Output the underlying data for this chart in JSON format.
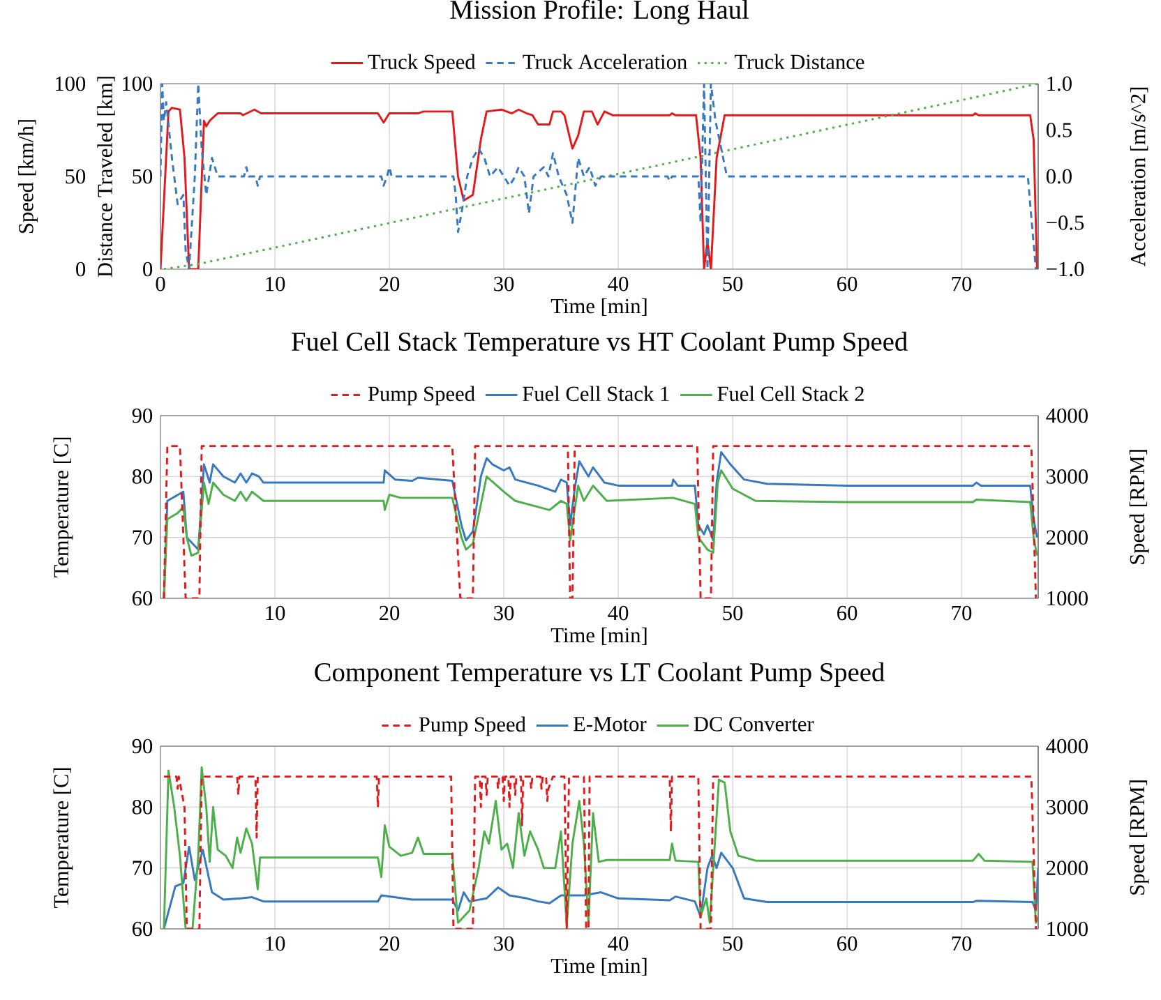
{
  "chart_data": [
    {
      "type": "line",
      "title": "Mission Profile: Long Haul",
      "xlabel": "Time [min]",
      "ylabel": "Speed [km/h]",
      "y2label": "Acceleration [m/s^2]",
      "y3label": "Distance Traveled [km]",
      "xlim": [
        0,
        76.7
      ],
      "xticks": [
        0,
        10,
        20,
        30,
        40,
        50,
        60,
        70
      ],
      "ylim": [
        0,
        100
      ],
      "yticks": [
        0,
        50,
        100
      ],
      "y2lim": [
        -1,
        1
      ],
      "y2ticks": [
        {
          "value": -1,
          "label": "−1.0"
        },
        {
          "value": -0.5,
          "label": "−0.5"
        },
        {
          "value": 0,
          "label": "0.0"
        },
        {
          "value": 0.5,
          "label": "0.5"
        },
        {
          "value": 1,
          "label": "1.0"
        }
      ],
      "y3lim": [
        0,
        100
      ],
      "y3ticks": [
        0,
        50,
        100
      ],
      "grid": "x",
      "legend": "top",
      "series": [
        {
          "name": "Truck Speed",
          "color": "#e31a1c",
          "line_style": "solid",
          "x": [
            0,
            0.7,
            1,
            1.7,
            2.1,
            2.5,
            3.3,
            3.8,
            4.0,
            4.3,
            5,
            7,
            7.2,
            8.2,
            8.8,
            19,
            19.5,
            20,
            22.5,
            23,
            25.5,
            26,
            26.5,
            27.3,
            28,
            28.5,
            29.8,
            30.7,
            31.3,
            32,
            32.5,
            33,
            34,
            34.3,
            35,
            35.3,
            36,
            36.5,
            37,
            37.7,
            38.2,
            38.8,
            39.5,
            44.5,
            44.7,
            45,
            46.8,
            47.2,
            47.5,
            47.8,
            48.1,
            48.6,
            49.3,
            71,
            71.2,
            71.5,
            76,
            76.3,
            76.6
          ],
          "values": [
            0,
            85,
            87,
            86,
            60,
            0,
            0,
            80,
            77,
            80,
            84,
            84,
            83,
            86,
            84,
            84,
            79,
            84,
            84,
            85,
            85,
            50,
            37,
            40,
            70,
            85,
            86,
            84,
            86,
            84,
            83,
            78,
            78,
            85,
            85,
            83,
            65,
            72,
            85,
            85,
            78,
            85,
            83,
            83,
            84,
            83,
            83,
            60,
            0,
            15,
            0,
            60,
            83,
            83,
            84,
            83,
            83,
            70,
            0
          ]
        },
        {
          "name": "Truck Acceleration",
          "color": "#3778bf",
          "line_style": "dashed",
          "axis": "y2",
          "x": [
            0,
            0.15,
            0.3,
            0.5,
            1,
            1.5,
            2,
            2.2,
            2.5,
            3.0,
            3.3,
            3.6,
            4.0,
            4.5,
            5,
            7.3,
            7.5,
            7.7,
            8.3,
            8.5,
            8.7,
            19.3,
            19.5,
            19.8,
            20,
            20.2,
            25.6,
            25.8,
            26,
            26.3,
            26.8,
            27.3,
            27.8,
            28.3,
            28.8,
            29.5,
            30,
            30.5,
            31,
            31.3,
            31.8,
            32.2,
            32.6,
            33.5,
            33.9,
            34.3,
            34.8,
            35.5,
            36,
            36.5,
            37,
            37.5,
            38,
            38.5,
            44.3,
            44.5,
            44.7,
            47,
            47.2,
            47.5,
            47.8,
            48.1,
            48.5,
            49,
            49.5,
            75.8,
            76,
            76.5
          ],
          "values": [
            0,
            1.0,
            0.6,
            0.8,
            0.2,
            -0.3,
            -0.2,
            -0.8,
            -1.0,
            0,
            1.0,
            0.3,
            -0.2,
            0.2,
            0,
            0,
            0.1,
            0,
            0,
            -0.1,
            0,
            0,
            -0.1,
            0,
            0.1,
            0,
            0,
            -0.2,
            -0.6,
            -0.4,
            0,
            0.2,
            0.3,
            0.2,
            0,
            0.1,
            0,
            -0.1,
            0,
            0.1,
            0,
            -0.4,
            0,
            0.1,
            0,
            0.25,
            0,
            -0.2,
            -0.5,
            0.2,
            0,
            0.1,
            -0.1,
            0,
            0,
            -0.05,
            0,
            0,
            -0.5,
            1.0,
            -1.0,
            1.0,
            0.6,
            0.3,
            0,
            0,
            -0.3,
            -1.0
          ]
        },
        {
          "name": "Truck Distance",
          "color": "#4daf4a",
          "line_style": "dotted",
          "axis": "y3",
          "x": [
            0.3,
            3.5,
            76.7
          ],
          "values": [
            0,
            3,
            100
          ]
        }
      ]
    },
    {
      "type": "line",
      "title": "Fuel Cell Stack Temperature vs HT Coolant Pump Speed",
      "xlabel": "Time [min]",
      "ylabel": "Temperature [C]",
      "y2label": "Speed [RPM]",
      "xlim": [
        0,
        76.7
      ],
      "xticks": [
        10,
        20,
        30,
        40,
        50,
        60,
        70
      ],
      "ylim": [
        60,
        90
      ],
      "yticks": [
        60,
        70,
        80,
        90
      ],
      "y2lim": [
        1000,
        4000
      ],
      "y2ticks": [
        1000,
        2000,
        3000,
        4000
      ],
      "grid": true,
      "legend": "top",
      "series": [
        {
          "name": "Pump Speed",
          "color": "#e31a1c",
          "line_style": "dashed",
          "axis": "y2",
          "x": [
            0.3,
            0.6,
            1.7,
            2.2,
            3.4,
            3.6,
            25.5,
            26.2,
            27.3,
            27.5,
            35.6,
            35.8,
            36.0,
            36.2,
            46.9,
            47.2,
            48.1,
            48.3,
            76.1,
            76.5
          ],
          "values": [
            1000,
            3500,
            3500,
            1000,
            1000,
            3500,
            3500,
            1000,
            1000,
            3500,
            3500,
            1000,
            1000,
            3500,
            3500,
            1000,
            1000,
            3500,
            3500,
            1000
          ]
        },
        {
          "name": "Fuel Cell Stack 1",
          "color": "#3778bf",
          "line_style": "solid",
          "x": [
            0.3,
            0.6,
            2,
            2.3,
            3.3,
            3.8,
            4.3,
            4.6,
            5.5,
            6.5,
            7,
            7.5,
            8,
            8.6,
            9,
            19.5,
            19.6,
            20.5,
            22,
            22.5,
            25.5,
            26.3,
            26.7,
            27.3,
            28,
            28.5,
            29,
            30,
            30.5,
            31,
            33,
            34.5,
            35,
            35.5,
            35.8,
            36.2,
            36.6,
            37.4,
            37.8,
            38.8,
            40,
            44.7,
            44.8,
            45.2,
            46.7,
            47,
            47.5,
            47.8,
            48.3,
            48.6,
            49,
            49.8,
            51,
            53,
            60,
            71,
            71.3,
            71.7,
            76,
            76.3,
            76.6
          ],
          "values": [
            60,
            76,
            77.5,
            70,
            68,
            82,
            79,
            82,
            80,
            79,
            80.5,
            79,
            80.5,
            80,
            79,
            79,
            81,
            79.5,
            79.3,
            79.8,
            79.3,
            72,
            69.5,
            71,
            80,
            83,
            82,
            81,
            81.5,
            79.5,
            78.5,
            77.5,
            79.5,
            79,
            72,
            78,
            82.5,
            80,
            81.5,
            79,
            78.5,
            78.5,
            79.5,
            78.5,
            78.5,
            72,
            70.5,
            72,
            69.5,
            79,
            84,
            82,
            79.5,
            78.8,
            78.5,
            78.5,
            79,
            78.5,
            78.5,
            73,
            70
          ]
        },
        {
          "name": "Fuel Cell Stack 2",
          "color": "#4daf4a",
          "line_style": "solid",
          "x": [
            0.3,
            0.6,
            1.5,
            2,
            2.3,
            2.7,
            3.3,
            3.8,
            4.2,
            4.6,
            5.5,
            6.5,
            7,
            7.5,
            8,
            9,
            19.5,
            19.6,
            20,
            21,
            25.5,
            26.3,
            26.7,
            27.3,
            28.5,
            30,
            31,
            34,
            35,
            35.5,
            35.8,
            36.5,
            37,
            37.8,
            39,
            44.8,
            46.7,
            47,
            47.8,
            48.3,
            48.7,
            49,
            50,
            52,
            60,
            71,
            71.3,
            76,
            76.3,
            76.6
          ],
          "values": [
            60,
            73,
            74,
            75,
            70,
            67,
            67.5,
            79,
            75.5,
            79,
            77,
            76,
            77.5,
            76,
            77.5,
            76,
            76,
            74.5,
            77,
            76.5,
            76.5,
            70,
            68,
            69,
            80,
            77.5,
            76,
            74.5,
            76,
            75.5,
            69.5,
            78.5,
            76,
            78.5,
            76,
            76.5,
            75.5,
            70,
            68,
            67.5,
            79,
            81,
            78,
            76,
            75.8,
            75.8,
            76.2,
            75.8,
            70,
            67
          ]
        }
      ]
    },
    {
      "type": "line",
      "title": "Component Temperature vs LT Coolant Pump Speed",
      "xlabel": "Time [min]",
      "ylabel": "Temperature [C]",
      "y2label": "Speed [RPM]",
      "xlim": [
        0,
        76.7
      ],
      "xticks": [
        10,
        20,
        30,
        40,
        50,
        60,
        70
      ],
      "ylim": [
        60,
        90
      ],
      "yticks": [
        60,
        70,
        80,
        90
      ],
      "y2lim": [
        1000,
        4000
      ],
      "y2ticks": [
        1000,
        2000,
        3000,
        4000
      ],
      "grid": true,
      "legend": "top",
      "series": [
        {
          "name": "Pump Speed",
          "color": "#e31a1c",
          "line_style": "dashed",
          "axis": "y2",
          "x": [
            0.3,
            0.5,
            1.4,
            1.5,
            1.6,
            2.1,
            2.3,
            2.8,
            3.4,
            3.6,
            6.7,
            6.8,
            6.9,
            8.3,
            8.4,
            8.5,
            18.9,
            19.0,
            19.1,
            25.4,
            25.6,
            27.3,
            27.5,
            27.9,
            28.0,
            28.1,
            28.4,
            28.5,
            28.6,
            29.4,
            29.5,
            29.6,
            29.9,
            30.0,
            30.1,
            30.4,
            30.5,
            30.6,
            30.9,
            31.0,
            31.1,
            31.5,
            31.6,
            31.7,
            32.3,
            32.4,
            32.5,
            33.2,
            33.3,
            33.4,
            33.7,
            33.8,
            33.9,
            34.3,
            35.3,
            35.5,
            35.7,
            37.0,
            37.2,
            37.4,
            37.5,
            44.5,
            44.6,
            44.7,
            47.0,
            47.2,
            48.1,
            48.3,
            76.1,
            76.5
          ],
          "values": [
            3500,
            3500,
            3500,
            3300,
            3500,
            3000,
            1000,
            1000,
            1000,
            3500,
            3500,
            3200,
            3500,
            3500,
            2500,
            3500,
            3500,
            3000,
            3500,
            3500,
            1000,
            1000,
            3500,
            3500,
            3000,
            3500,
            3500,
            3200,
            3500,
            3500,
            3300,
            3500,
            3500,
            3100,
            3500,
            3500,
            3000,
            3500,
            3500,
            3200,
            3500,
            3500,
            2700,
            3500,
            3500,
            3300,
            3500,
            3500,
            3300,
            3500,
            3500,
            3100,
            3300,
            3500,
            3500,
            1000,
            3500,
            3500,
            1000,
            1000,
            3500,
            3500,
            2600,
            3500,
            3500,
            1000,
            1000,
            3500,
            3500,
            1000
          ]
        },
        {
          "name": "E-Motor",
          "color": "#3778bf",
          "line_style": "solid",
          "x": [
            0.3,
            1.3,
            2,
            2.5,
            3,
            3.7,
            4.5,
            5.5,
            7,
            8,
            9,
            19,
            19.3,
            22,
            25.5,
            26,
            26.5,
            27,
            28.5,
            29.5,
            30.5,
            32,
            33,
            34,
            35,
            37,
            38.5,
            40,
            44.5,
            45,
            46.7,
            47.2,
            47.8,
            48.2,
            48.6,
            49,
            50,
            51,
            53,
            71,
            71.3,
            76.2,
            76.5,
            76.7
          ],
          "values": [
            60,
            67,
            67.5,
            73.5,
            68,
            73,
            66,
            64.8,
            65,
            65.2,
            64.5,
            64.5,
            65.5,
            64.8,
            64.8,
            63,
            66,
            64.5,
            65,
            66.8,
            65.5,
            65,
            64.5,
            64.2,
            65.5,
            65.5,
            66,
            65,
            64.7,
            65.3,
            64.5,
            62,
            70,
            72,
            70,
            72.5,
            70,
            65,
            64.4,
            64.4,
            64.6,
            64.4,
            63,
            70
          ]
        },
        {
          "name": "DC Converter",
          "color": "#4daf4a",
          "line_style": "solid",
          "x": [
            0.3,
            0.7,
            1.2,
            1.7,
            2.2,
            2.8,
            3.3,
            3.6,
            4,
            4.3,
            4.6,
            5,
            5.7,
            6.3,
            6.7,
            7,
            7.5,
            8,
            8.5,
            8.7,
            19,
            19.3,
            19.6,
            20,
            21,
            22,
            22.5,
            23,
            25.5,
            26,
            27,
            27.8,
            28.3,
            28.7,
            29.3,
            29.8,
            30.3,
            30.8,
            31.3,
            31.8,
            32.3,
            33,
            33.5,
            34.5,
            35,
            35.5,
            36,
            36.6,
            37,
            37.4,
            37.8,
            38.3,
            39,
            44.5,
            44.7,
            45,
            47,
            47.2,
            47.7,
            48,
            48.8,
            49.3,
            49.8,
            50.5,
            52,
            71,
            71.5,
            72,
            76.2,
            76.5,
            76.7
          ],
          "values": [
            60,
            86,
            80,
            72,
            60,
            60,
            72,
            86.5,
            80,
            71,
            80,
            73,
            72,
            70,
            75,
            72.5,
            76.5,
            74,
            66.5,
            71.7,
            71.7,
            68.5,
            77,
            73.5,
            72,
            72.5,
            75,
            72.3,
            72.3,
            61,
            63,
            70,
            76,
            74,
            81,
            73,
            74,
            70,
            79,
            72,
            76,
            73,
            70,
            70,
            76,
            60.5,
            74,
            81,
            74,
            61,
            79,
            71,
            71.3,
            71.3,
            74,
            71.2,
            71,
            62,
            65,
            61,
            84.5,
            84,
            76,
            72,
            71.2,
            71.2,
            72.3,
            71.2,
            71,
            61,
            62
          ]
        }
      ]
    }
  ]
}
